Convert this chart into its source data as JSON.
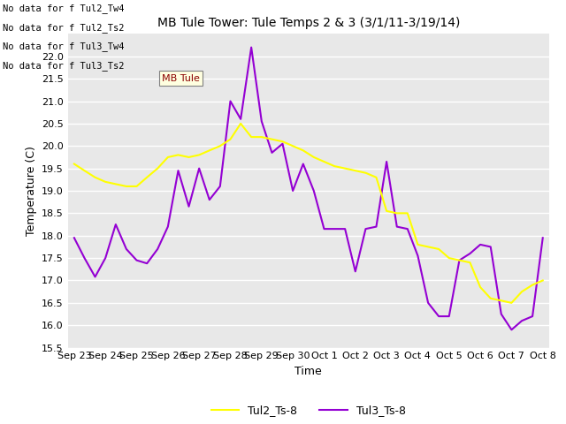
{
  "title": "MB Tule Tower: Tule Temps 2 & 3 (3/1/11-3/19/14)",
  "xlabel": "Time",
  "ylabel": "Temperature (C)",
  "ylim": [
    15.5,
    22.5
  ],
  "yticks": [
    15.5,
    16.0,
    16.5,
    17.0,
    17.5,
    18.0,
    18.5,
    19.0,
    19.5,
    20.0,
    20.5,
    21.0,
    21.5,
    22.0
  ],
  "xtick_labels": [
    "Sep 23",
    "Sep 24",
    "Sep 25",
    "Sep 26",
    "Sep 27",
    "Sep 28",
    "Sep 29",
    "Sep 30",
    "Oct 1",
    "Oct 2",
    "Oct 3",
    "Oct 4",
    "Oct 5",
    "Oct 6",
    "Oct 7",
    "Oct 8"
  ],
  "bg_color": "#e8e8e8",
  "grid_color": "#ffffff",
  "legend_texts": [
    "No data for f Tul2_Tw4",
    "No data for f Tul2_Ts2",
    "No data for f Tul3_Tw4",
    "No data for f Tul3_Ts2"
  ],
  "series1_label": "Tul2_Ts-8",
  "series2_label": "Tul3_Ts-8",
  "series1_color": "#ffff00",
  "series2_color": "#9400d3",
  "tul2_x": [
    0,
    0.33,
    0.67,
    1.0,
    1.33,
    1.67,
    2.0,
    2.33,
    2.67,
    3.0,
    3.33,
    3.67,
    4.0,
    4.33,
    4.67,
    5.0,
    5.33,
    5.67,
    6.0,
    6.33,
    6.67,
    7.0,
    7.33,
    7.67,
    8.0,
    8.33,
    8.67,
    9.0,
    9.33,
    9.67,
    10.0,
    10.33,
    10.67,
    11.0,
    11.33,
    11.67,
    12.0,
    12.33,
    12.67,
    13.0,
    13.33,
    13.67,
    14.0,
    14.33,
    14.67,
    15.0
  ],
  "tul2_y": [
    19.6,
    19.45,
    19.3,
    19.2,
    19.15,
    19.1,
    19.1,
    19.3,
    19.5,
    19.75,
    19.8,
    19.75,
    19.8,
    19.9,
    20.0,
    20.15,
    20.5,
    20.2,
    20.2,
    20.15,
    20.1,
    20.0,
    19.9,
    19.75,
    19.65,
    19.55,
    19.5,
    19.45,
    19.4,
    19.3,
    18.55,
    18.5,
    18.5,
    17.8,
    17.75,
    17.7,
    17.5,
    17.45,
    17.4,
    16.85,
    16.6,
    16.55,
    16.5,
    16.75,
    16.9,
    17.0
  ],
  "tul3_x": [
    0,
    0.33,
    0.67,
    1.0,
    1.33,
    1.67,
    2.0,
    2.33,
    2.67,
    3.0,
    3.33,
    3.67,
    4.0,
    4.33,
    4.67,
    5.0,
    5.33,
    5.67,
    6.0,
    6.33,
    6.67,
    7.0,
    7.33,
    7.67,
    8.0,
    8.33,
    8.67,
    9.0,
    9.33,
    9.67,
    10.0,
    10.33,
    10.67,
    11.0,
    11.33,
    11.67,
    12.0,
    12.33,
    12.67,
    13.0,
    13.33,
    13.67,
    14.0,
    14.33,
    14.67,
    15.0
  ],
  "tul3_y": [
    17.95,
    17.5,
    17.08,
    17.5,
    18.25,
    17.7,
    17.45,
    17.38,
    17.7,
    18.2,
    19.45,
    18.65,
    19.5,
    18.8,
    19.1,
    21.0,
    20.6,
    22.2,
    20.55,
    19.85,
    20.05,
    19.0,
    19.6,
    19.0,
    18.15,
    18.15,
    18.15,
    17.2,
    18.15,
    18.2,
    19.65,
    18.2,
    18.15,
    17.55,
    16.5,
    16.2,
    16.2,
    17.45,
    17.6,
    17.8,
    17.75,
    16.25,
    15.9,
    16.1,
    16.2,
    17.95
  ]
}
